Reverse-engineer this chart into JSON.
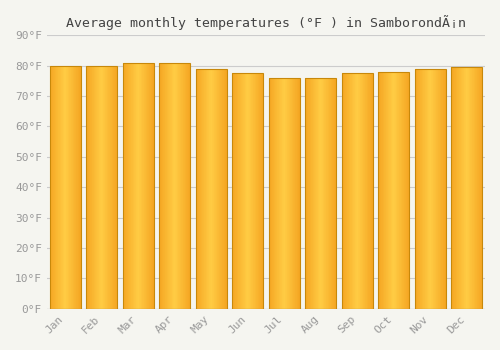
{
  "title": "Average monthly temperatures (°F ) in SamborondÃ¡n",
  "months": [
    "Jan",
    "Feb",
    "Mar",
    "Apr",
    "May",
    "Jun",
    "Jul",
    "Aug",
    "Sep",
    "Oct",
    "Nov",
    "Dec"
  ],
  "values": [
    80.0,
    80.0,
    81.0,
    81.0,
    79.0,
    77.5,
    76.0,
    76.0,
    77.5,
    78.0,
    79.0,
    79.5
  ],
  "bar_color_center": "#FFCC44",
  "bar_color_edge": "#F5A623",
  "bar_border_color": "#C8880A",
  "background_color": "#F5F5F0",
  "grid_color": "#CCCCCC",
  "tick_label_color": "#999999",
  "title_color": "#444444",
  "ylim": [
    0,
    90
  ],
  "yticks": [
    0,
    10,
    20,
    30,
    40,
    50,
    60,
    70,
    80,
    90
  ],
  "ylabel_format": "°F",
  "figsize": [
    5.0,
    3.5
  ],
  "dpi": 100,
  "bar_width": 0.85
}
